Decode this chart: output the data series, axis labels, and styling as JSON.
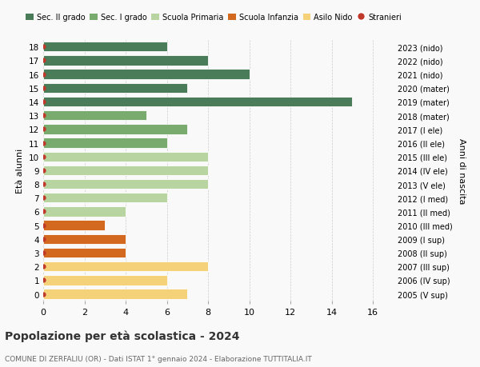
{
  "ages": [
    18,
    17,
    16,
    15,
    14,
    13,
    12,
    11,
    10,
    9,
    8,
    7,
    6,
    5,
    4,
    3,
    2,
    1,
    0
  ],
  "right_labels": [
    "2005 (V sup)",
    "2006 (IV sup)",
    "2007 (III sup)",
    "2008 (II sup)",
    "2009 (I sup)",
    "2010 (III med)",
    "2011 (II med)",
    "2012 (I med)",
    "2013 (V ele)",
    "2014 (IV ele)",
    "2015 (III ele)",
    "2016 (II ele)",
    "2017 (I ele)",
    "2018 (mater)",
    "2019 (mater)",
    "2020 (mater)",
    "2021 (nido)",
    "2022 (nido)",
    "2023 (nido)"
  ],
  "values": [
    6,
    8,
    10,
    7,
    15,
    5,
    7,
    6,
    8,
    8,
    8,
    6,
    4,
    3,
    4,
    4,
    8,
    6,
    7
  ],
  "colors": [
    "#4a7c59",
    "#4a7c59",
    "#4a7c59",
    "#4a7c59",
    "#4a7c59",
    "#7aab6e",
    "#7aab6e",
    "#7aab6e",
    "#b8d4a0",
    "#b8d4a0",
    "#b8d4a0",
    "#b8d4a0",
    "#b8d4a0",
    "#d2691e",
    "#d2691e",
    "#d2691e",
    "#f5d27a",
    "#f5d27a",
    "#f5d27a"
  ],
  "legend_labels": [
    "Sec. II grado",
    "Sec. I grado",
    "Scuola Primaria",
    "Scuola Infanzia",
    "Asilo Nido",
    "Stranieri"
  ],
  "legend_colors": [
    "#4a7c59",
    "#7aab6e",
    "#b8d4a0",
    "#d2691e",
    "#f5d27a",
    "#c0392b"
  ],
  "ylabel": "Età alunni",
  "right_ylabel": "Anni di nascita",
  "title": "Popolazione per età scolastica - 2024",
  "subtitle": "COMUNE DI ZERFALIU (OR) - Dati ISTAT 1° gennaio 2024 - Elaborazione TUTTITALIA.IT",
  "xlim": [
    0,
    17
  ],
  "xticks": [
    0,
    2,
    4,
    6,
    8,
    10,
    12,
    14,
    16
  ],
  "background_color": "#f9f9f9",
  "grid_color": "#cccccc",
  "dot_color": "#c0392b",
  "bar_edgecolor": "white"
}
